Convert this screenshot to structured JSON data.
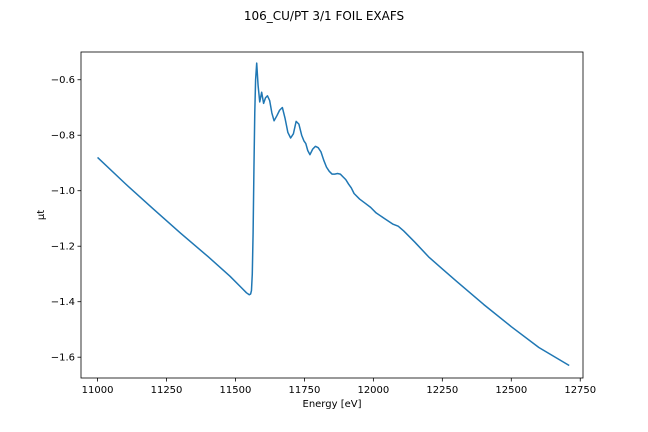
{
  "chart_data": {
    "type": "line",
    "title": "106_CU/PT 3/1 FOIL EXAFS",
    "xlabel": "Energy [eV]",
    "ylabel": "μt",
    "xlim": [
      10940,
      12760
    ],
    "ylim": [
      -1.675,
      -0.5
    ],
    "xticks": [
      11000,
      11250,
      11500,
      11750,
      12000,
      12250,
      12500,
      12750
    ],
    "xtick_labels": [
      "11000",
      "11250",
      "11500",
      "11750",
      "12000",
      "12250",
      "12500",
      "12750"
    ],
    "yticks": [
      -1.6,
      -1.4,
      -1.2,
      -1.0,
      -0.8,
      -0.6
    ],
    "ytick_labels": [
      "−1.6",
      "−1.4",
      "−1.2",
      "−1.0",
      "−0.8",
      "−0.6"
    ],
    "grid": false,
    "series": [
      {
        "color": "#1f77b4",
        "x": [
          11000,
          11100,
          11200,
          11300,
          11400,
          11480,
          11520,
          11540,
          11550,
          11555,
          11558,
          11561,
          11564,
          11567,
          11570,
          11573,
          11577,
          11582,
          11588,
          11595,
          11602,
          11609,
          11616,
          11624,
          11632,
          11640,
          11650,
          11660,
          11670,
          11680,
          11690,
          11700,
          11710,
          11720,
          11730,
          11740,
          11748,
          11755,
          11762,
          11770,
          11780,
          11790,
          11800,
          11810,
          11820,
          11830,
          11840,
          11850,
          11860,
          11870,
          11880,
          11890,
          11900,
          11910,
          11920,
          11930,
          11950,
          11970,
          11990,
          12010,
          12040,
          12070,
          12090,
          12110,
          12150,
          12200,
          12250,
          12300,
          12400,
          12500,
          12600,
          12710
        ],
        "y": [
          -0.88,
          -0.974,
          -1.064,
          -1.152,
          -1.237,
          -1.308,
          -1.348,
          -1.368,
          -1.375,
          -1.372,
          -1.36,
          -1.3,
          -1.15,
          -0.92,
          -0.72,
          -0.6,
          -0.54,
          -0.62,
          -0.68,
          -0.645,
          -0.685,
          -0.665,
          -0.658,
          -0.675,
          -0.72,
          -0.748,
          -0.73,
          -0.71,
          -0.7,
          -0.74,
          -0.79,
          -0.81,
          -0.795,
          -0.75,
          -0.76,
          -0.8,
          -0.82,
          -0.83,
          -0.855,
          -0.87,
          -0.85,
          -0.84,
          -0.845,
          -0.86,
          -0.89,
          -0.915,
          -0.93,
          -0.94,
          -0.94,
          -0.938,
          -0.94,
          -0.95,
          -0.96,
          -0.976,
          -0.99,
          -1.01,
          -1.03,
          -1.045,
          -1.06,
          -1.08,
          -1.1,
          -1.12,
          -1.128,
          -1.145,
          -1.185,
          -1.238,
          -1.282,
          -1.325,
          -1.41,
          -1.49,
          -1.565,
          -1.63
        ]
      }
    ]
  }
}
